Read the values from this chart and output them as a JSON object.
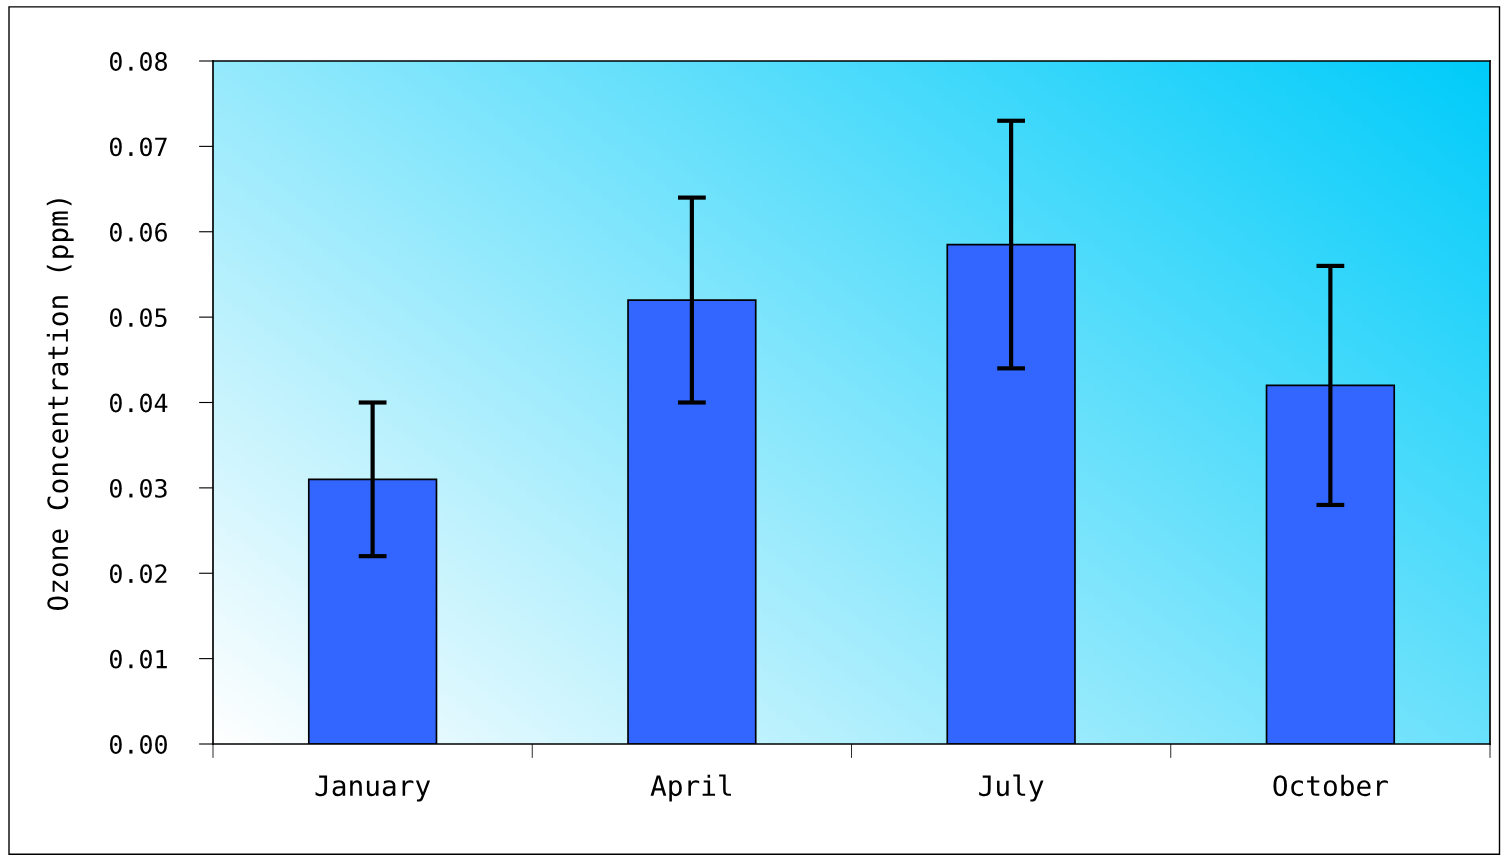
{
  "chart_data": {
    "type": "bar",
    "ylabel": "Ozone Concentration (ppm)",
    "categories": [
      "January",
      "April",
      "July",
      "October"
    ],
    "values": [
      0.031,
      0.052,
      0.0585,
      0.042
    ],
    "errors": [
      0.009,
      0.012,
      0.0145,
      0.014
    ],
    "color": "#3366ff",
    "ylim": [
      0,
      0.08
    ],
    "yticks": [
      {
        "value": 0,
        "label": "0.00"
      },
      {
        "value": 0.01,
        "label": "0.01"
      },
      {
        "value": 0.02,
        "label": "0.02"
      },
      {
        "value": 0.03,
        "label": "0.03"
      },
      {
        "value": 0.04,
        "label": "0.04"
      },
      {
        "value": 0.05,
        "label": "0.05"
      },
      {
        "value": 0.06,
        "label": "0.06"
      },
      {
        "value": 0.07,
        "label": "0.07"
      },
      {
        "value": 0.08,
        "label": "0.08"
      }
    ],
    "grid": false,
    "legend": false
  }
}
